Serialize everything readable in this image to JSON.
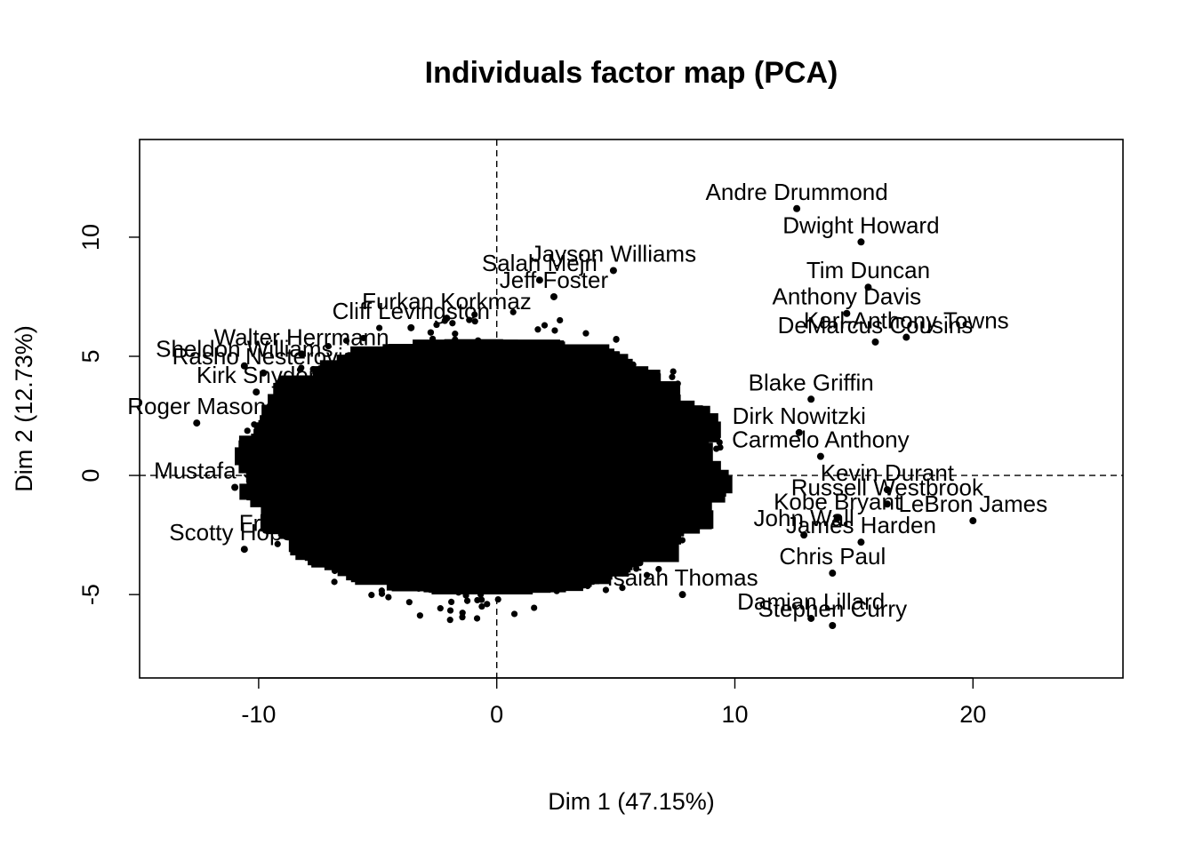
{
  "chart_data": {
    "type": "scatter",
    "title": "Individuals factor map (PCA)",
    "xlabel": "Dim 1 (47.15%)",
    "ylabel": "Dim 2 (12.73%)",
    "xlim": [
      -15,
      26.3
    ],
    "ylim": [
      -8.5,
      14.1
    ],
    "xticks": [
      -10,
      0,
      10,
      20
    ],
    "yticks": [
      -5,
      0,
      5,
      10
    ],
    "reference_lines": {
      "x": 0,
      "y": 0,
      "style": "dashed"
    },
    "grid": false,
    "labeled_points": [
      {
        "label": "Andre Drummond",
        "x": 12.6,
        "y": 11.2
      },
      {
        "label": "Dwight Howard",
        "x": 15.3,
        "y": 9.8
      },
      {
        "label": "Jayson Williams",
        "x": 4.9,
        "y": 8.6
      },
      {
        "label": "Salah Mejri",
        "x": 1.8,
        "y": 8.2
      },
      {
        "label": "Tim Duncan",
        "x": 15.6,
        "y": 7.9
      },
      {
        "label": "Anthony Davis",
        "x": 14.7,
        "y": 6.8
      },
      {
        "label": "Karl-Anthony Towns",
        "x": 17.2,
        "y": 5.8
      },
      {
        "label": "DeMarcus Cousins",
        "x": 15.9,
        "y": 5.6
      },
      {
        "label": "Blake Griffin",
        "x": 13.2,
        "y": 3.2
      },
      {
        "label": "Dirk Nowitzki",
        "x": 12.7,
        "y": 1.8
      },
      {
        "label": "Carmelo Anthony",
        "x": 13.6,
        "y": 0.8
      },
      {
        "label": "Kevin Durant",
        "x": 16.4,
        "y": -0.6
      },
      {
        "label": "LeBron James",
        "x": 20.0,
        "y": -1.9
      },
      {
        "label": "Russell Westbrook",
        "x": 16.4,
        "y": -1.2
      },
      {
        "label": "Kobe Bryant",
        "x": 14.3,
        "y": -1.8
      },
      {
        "label": "John Wall",
        "x": 12.9,
        "y": -2.5
      },
      {
        "label": "James Harden",
        "x": 15.3,
        "y": -2.8
      },
      {
        "label": "Chris Paul",
        "x": 14.1,
        "y": -4.1
      },
      {
        "label": "Isaiah Thomas",
        "x": 7.8,
        "y": -5.0
      },
      {
        "label": "Damian Lillard",
        "x": 13.2,
        "y": -6.0
      },
      {
        "label": "Stephen Curry",
        "x": 14.1,
        "y": -6.3
      },
      {
        "label": "Furkan Korkmaz",
        "x": -2.1,
        "y": 6.6
      },
      {
        "label": "Jeff Foster",
        "x": 2.4,
        "y": 7.5
      },
      {
        "label": "Cliff Levingston",
        "x": -3.6,
        "y": 6.2
      },
      {
        "label": "Walter Herrmann",
        "x": -8.2,
        "y": 5.1
      },
      {
        "label": "Sheldon Williams",
        "x": -10.6,
        "y": 4.6
      },
      {
        "label": "Rasho Nesterovic",
        "x": -9.8,
        "y": 4.3
      },
      {
        "label": "Kirk Snyder",
        "x": -10.1,
        "y": 3.5
      },
      {
        "label": "Roger Mason",
        "x": -12.6,
        "y": 2.2
      },
      {
        "label": "Mustafa Shakur",
        "x": -11.0,
        "y": -0.5
      },
      {
        "label": "Scotty Hopson",
        "x": -10.6,
        "y": -3.1
      },
      {
        "label": "Fred Jones",
        "x": -8.4,
        "y": -2.7
      }
    ]
  }
}
